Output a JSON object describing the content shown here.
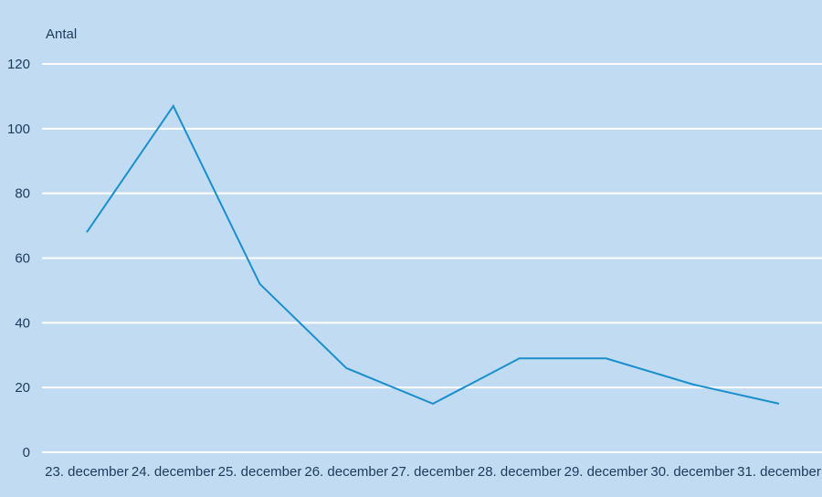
{
  "chart_data": {
    "type": "line",
    "title": "",
    "xlabel": "",
    "ylabel": "Antal",
    "ylim": [
      0,
      120
    ],
    "yticks": [
      0,
      20,
      40,
      60,
      80,
      100,
      120
    ],
    "grid": true,
    "categories": [
      "23. december",
      "24. december",
      "25. december",
      "26. december",
      "27. december",
      "28. december",
      "29. december",
      "30. december",
      "31. december"
    ],
    "series": [
      {
        "values": [
          68,
          107,
          52,
          26,
          15,
          29,
          29,
          21,
          15
        ]
      }
    ],
    "colors": {
      "background": "#c1dcf2",
      "grid": "#ffffff",
      "line": "#1a8fcc",
      "text": "#1b3a5c"
    }
  }
}
